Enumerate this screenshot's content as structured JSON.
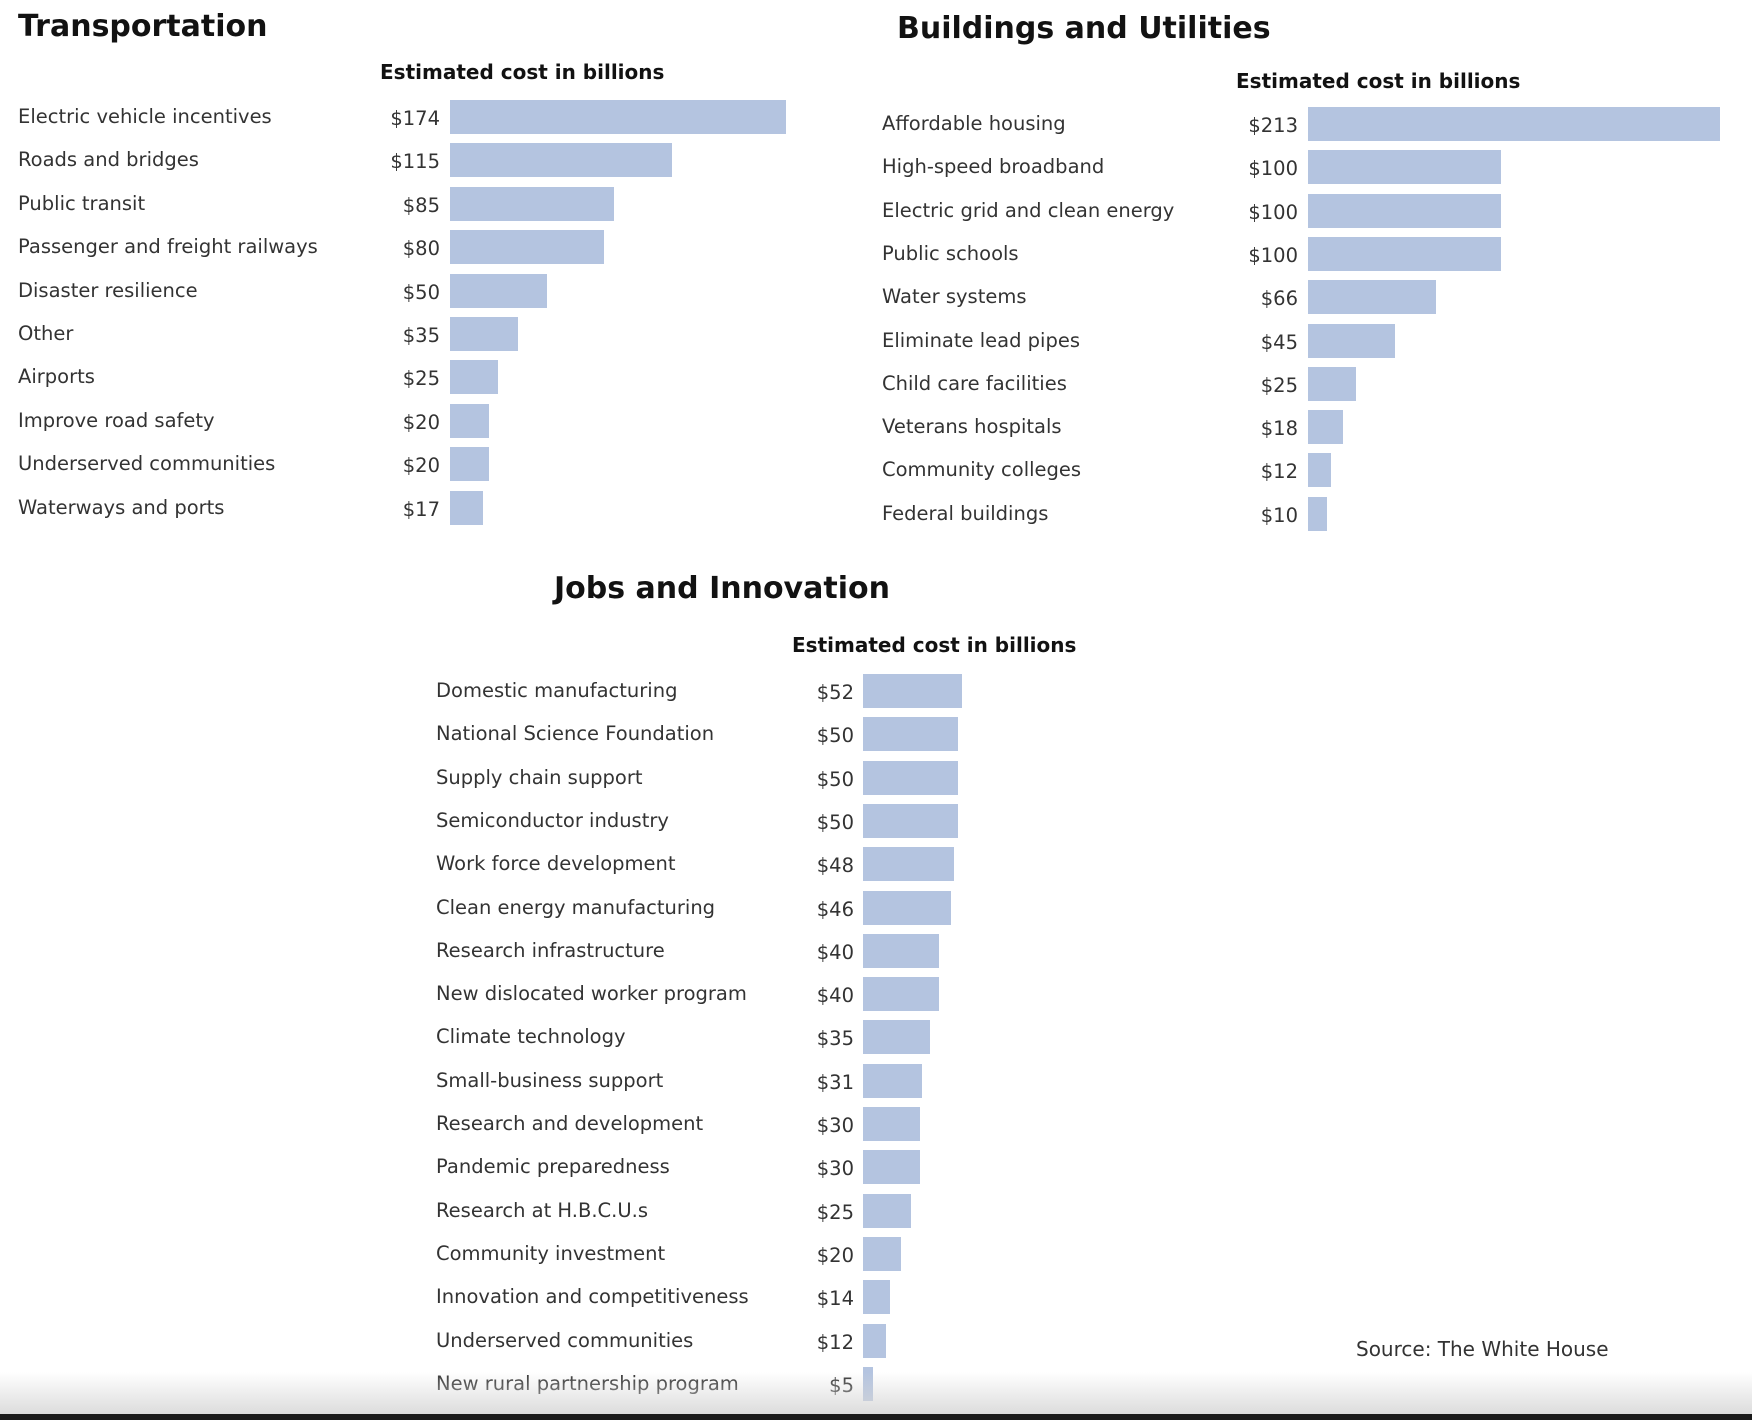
{
  "colors": {
    "bar": "#b4c4e0",
    "text": "#333333",
    "title": "#121212"
  },
  "footer": {
    "source": "Source: The White House"
  },
  "chart_data": [
    {
      "type": "bar",
      "orientation": "horizontal",
      "title": "Transportation",
      "subtitle": "Estimated cost in billions",
      "unit_prefix": "$",
      "categories": [
        "Electric vehicle incentives",
        "Roads and bridges",
        "Public transit",
        "Passenger and freight railways",
        "Disaster resilience",
        "Other",
        "Airports",
        "Improve road safety",
        "Underserved communities",
        "Waterways and ports"
      ],
      "values": [
        174,
        115,
        85,
        80,
        50,
        35,
        25,
        20,
        20,
        17
      ],
      "value_labels": [
        "$174",
        "$115",
        "$85",
        "$80",
        "$50",
        "$35",
        "$25",
        "$20",
        "$20",
        "$17"
      ],
      "grid": false,
      "legend": "none"
    },
    {
      "type": "bar",
      "orientation": "horizontal",
      "title": "Buildings and Utilities",
      "subtitle": "Estimated cost in billions",
      "unit_prefix": "$",
      "categories": [
        "Affordable housing",
        "High-speed broadband",
        "Electric grid and clean energy",
        "Public schools",
        "Water systems",
        "Eliminate lead pipes",
        "Child care facilities",
        "Veterans hospitals",
        "Community colleges",
        "Federal buildings"
      ],
      "values": [
        213,
        100,
        100,
        100,
        66,
        45,
        25,
        18,
        12,
        10
      ],
      "value_labels": [
        "$213",
        "$100",
        "$100",
        "$100",
        "$66",
        "$45",
        "$25",
        "$18",
        "$12",
        "$10"
      ],
      "grid": false,
      "legend": "none"
    },
    {
      "type": "bar",
      "orientation": "horizontal",
      "title": "Jobs and Innovation",
      "subtitle": "Estimated cost in billions",
      "unit_prefix": "$",
      "categories": [
        "Domestic manufacturing",
        "National Science Foundation",
        "Supply chain support",
        "Semiconductor industry",
        "Work force development",
        "Clean energy manufacturing",
        "Research infrastructure",
        "New dislocated worker program",
        "Climate technology",
        "Small-business support",
        "Research and development",
        "Pandemic preparedness",
        "Research at H.B.C.U.s",
        "Community investment",
        "Innovation and competitiveness",
        "Underserved communities",
        "New rural partnership program"
      ],
      "values": [
        52,
        50,
        50,
        50,
        48,
        46,
        40,
        40,
        35,
        31,
        30,
        30,
        25,
        20,
        14,
        12,
        5
      ],
      "value_labels": [
        "$52",
        "$50",
        "$50",
        "$50",
        "$48",
        "$46",
        "$40",
        "$40",
        "$35",
        "$31",
        "$30",
        "$30",
        "$25",
        "$20",
        "$14",
        "$12",
        "$5"
      ],
      "grid": false,
      "legend": "none"
    }
  ]
}
